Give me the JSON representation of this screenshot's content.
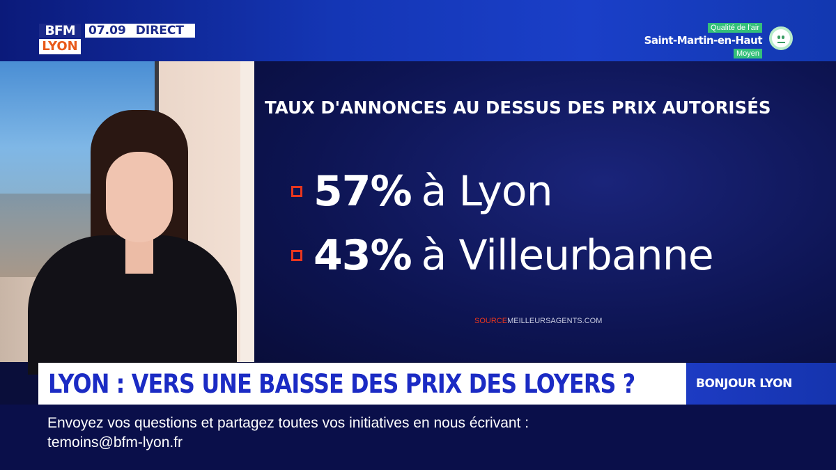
{
  "header": {
    "logo_top": "BFM",
    "logo_bottom": "LYON",
    "clock": "07.09",
    "live_label": "DIRECT"
  },
  "air_quality": {
    "label": "Qualité de l'air",
    "location": "Saint-Martin-en-Haut",
    "level": "Moyen",
    "icon": "neutral-face-icon",
    "color": "#34c07a"
  },
  "graphic": {
    "title": "TAUX D'ANNONCES AU DESSUS DES PRIX AUTORISÉS",
    "stats": [
      {
        "percent": "57%",
        "place": "à Lyon"
      },
      {
        "percent": "43%",
        "place": "à Villeurbanne"
      }
    ],
    "source_label": "SOURCE",
    "source_value": "MEILLEURSAGENTS.COM",
    "bullet_color": "#e8361e"
  },
  "headline": {
    "text": "LYON : VERS UNE BAISSE DES PRIX DES LOYERS ?",
    "program": "BONJOUR LYON"
  },
  "ticker": {
    "line1": "Envoyez vos questions et partagez toutes vos initiatives en nous écrivant :",
    "line2": "temoins@bfm-lyon.fr"
  },
  "colors": {
    "brand_blue": "#1b2bc4",
    "ticker_bg": "#0a0f4a"
  }
}
